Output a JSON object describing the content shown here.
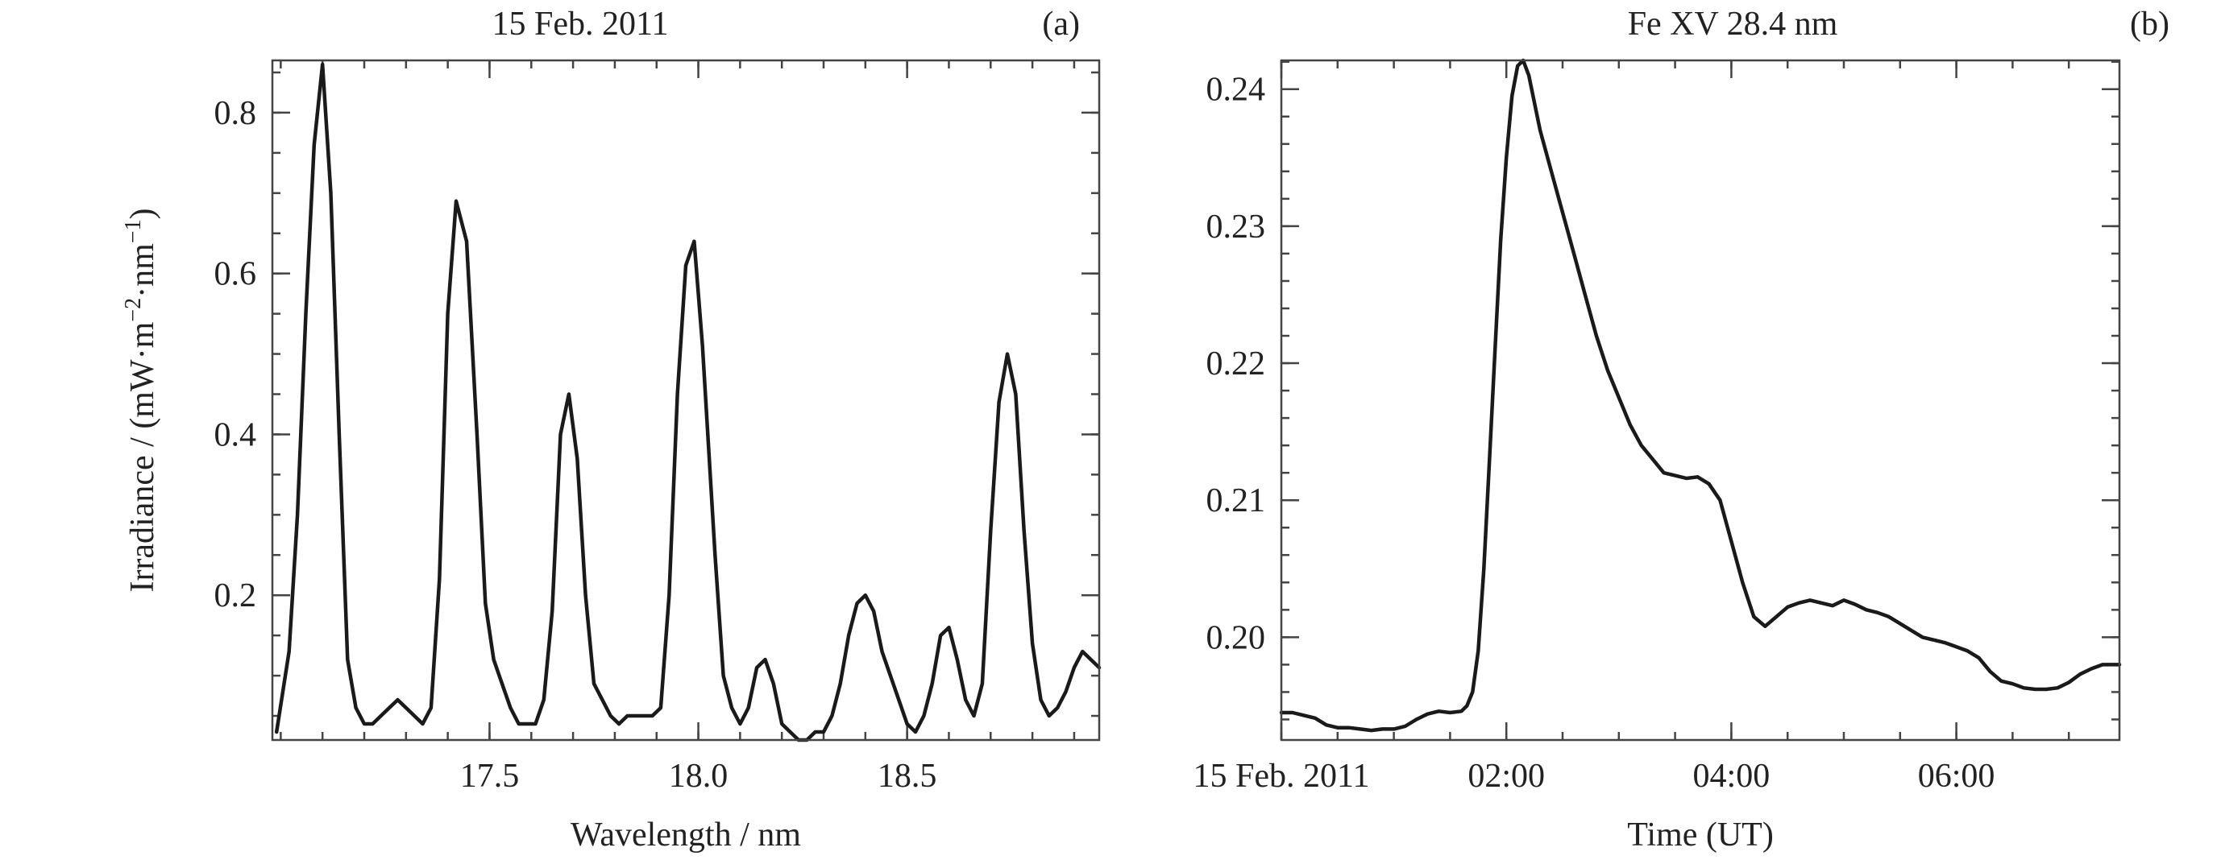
{
  "colors": {
    "line": "#1a1a1a",
    "axis": "#444444",
    "text": "#222222",
    "background": "#ffffff"
  },
  "chart_data": [
    {
      "type": "line",
      "title": "15 Feb. 2011",
      "panel_label": "(a)",
      "xlabel": "Wavelength / nm",
      "ylabel_main": "Irradiance / (mW",
      "ylabel_m": "m",
      "ylabel_m_exp": "−2",
      "ylabel_nm": "nm",
      "ylabel_nm_exp": "−1",
      "ylabel_close": ")",
      "xlim": [
        16.98,
        18.96
      ],
      "ylim": [
        0.02,
        0.865
      ],
      "xticks": [
        17.5,
        18.0,
        18.5
      ],
      "xtick_labels": [
        "17.5",
        "18.0",
        "18.5"
      ],
      "yticks": [
        0.2,
        0.4,
        0.6,
        0.8
      ],
      "ytick_labels": [
        "0.2",
        "0.4",
        "0.6",
        "0.8"
      ],
      "grid": false,
      "series": [
        {
          "x": [
            16.99,
            17.02,
            17.04,
            17.06,
            17.08,
            17.1,
            17.12,
            17.14,
            17.16,
            17.18,
            17.2,
            17.22,
            17.24,
            17.26,
            17.28,
            17.3,
            17.32,
            17.34,
            17.36,
            17.38,
            17.4,
            17.42,
            17.445,
            17.47,
            17.49,
            17.51,
            17.53,
            17.55,
            17.57,
            17.59,
            17.61,
            17.63,
            17.65,
            17.67,
            17.69,
            17.71,
            17.73,
            17.75,
            17.77,
            17.79,
            17.81,
            17.83,
            17.85,
            17.87,
            17.89,
            17.91,
            17.93,
            17.95,
            17.97,
            17.99,
            18.01,
            18.04,
            18.06,
            18.08,
            18.1,
            18.12,
            18.14,
            18.16,
            18.18,
            18.2,
            18.22,
            18.24,
            18.26,
            18.28,
            18.3,
            18.32,
            18.34,
            18.36,
            18.38,
            18.4,
            18.42,
            18.44,
            18.46,
            18.48,
            18.5,
            18.52,
            18.54,
            18.56,
            18.58,
            18.6,
            18.62,
            18.64,
            18.66,
            18.68,
            18.7,
            18.72,
            18.74,
            18.76,
            18.78,
            18.8,
            18.82,
            18.84,
            18.86,
            18.88,
            18.9,
            18.92,
            18.96
          ],
          "y": [
            0.03,
            0.13,
            0.3,
            0.55,
            0.76,
            0.86,
            0.7,
            0.4,
            0.12,
            0.06,
            0.04,
            0.04,
            0.05,
            0.06,
            0.07,
            0.06,
            0.05,
            0.04,
            0.06,
            0.22,
            0.55,
            0.69,
            0.64,
            0.4,
            0.19,
            0.12,
            0.09,
            0.06,
            0.04,
            0.04,
            0.04,
            0.07,
            0.18,
            0.4,
            0.45,
            0.37,
            0.2,
            0.09,
            0.07,
            0.05,
            0.04,
            0.05,
            0.05,
            0.05,
            0.05,
            0.06,
            0.2,
            0.45,
            0.61,
            0.64,
            0.51,
            0.25,
            0.1,
            0.06,
            0.04,
            0.06,
            0.11,
            0.12,
            0.09,
            0.04,
            0.03,
            0.02,
            0.02,
            0.03,
            0.03,
            0.05,
            0.09,
            0.15,
            0.19,
            0.2,
            0.18,
            0.13,
            0.1,
            0.07,
            0.04,
            0.03,
            0.05,
            0.09,
            0.15,
            0.16,
            0.12,
            0.07,
            0.05,
            0.09,
            0.28,
            0.44,
            0.5,
            0.45,
            0.28,
            0.14,
            0.07,
            0.05,
            0.06,
            0.08,
            0.11,
            0.13,
            0.11
          ]
        }
      ]
    },
    {
      "type": "line",
      "title": "Fe XV 28.4 nm",
      "panel_label": "(b)",
      "xlabel": "Time (UT)",
      "xlim": [
        0.0,
        7.45
      ],
      "ylim": [
        0.1925,
        0.2421
      ],
      "xticks": [
        0.0,
        2.0,
        4.0,
        6.0
      ],
      "xtick_labels": [
        "15 Feb. 2011",
        "02:00",
        "04:00",
        "06:00"
      ],
      "yticks": [
        0.2,
        0.21,
        0.22,
        0.23,
        0.24
      ],
      "ytick_labels": [
        "0.20",
        "0.21",
        "0.22",
        "0.23",
        "0.24"
      ],
      "grid": false,
      "series": [
        {
          "x": [
            0.0,
            0.1,
            0.2,
            0.3,
            0.4,
            0.5,
            0.6,
            0.7,
            0.8,
            0.9,
            1.0,
            1.1,
            1.2,
            1.3,
            1.4,
            1.5,
            1.6,
            1.65,
            1.7,
            1.75,
            1.8,
            1.85,
            1.9,
            1.95,
            2.0,
            2.05,
            2.1,
            2.15,
            2.2,
            2.25,
            2.3,
            2.4,
            2.5,
            2.6,
            2.7,
            2.8,
            2.9,
            3.0,
            3.1,
            3.2,
            3.3,
            3.4,
            3.5,
            3.6,
            3.7,
            3.8,
            3.9,
            4.0,
            4.1,
            4.2,
            4.3,
            4.4,
            4.5,
            4.6,
            4.7,
            4.8,
            4.9,
            5.0,
            5.1,
            5.2,
            5.3,
            5.4,
            5.5,
            5.6,
            5.7,
            5.8,
            5.9,
            6.0,
            6.1,
            6.2,
            6.3,
            6.4,
            6.5,
            6.6,
            6.7,
            6.8,
            6.9,
            7.0,
            7.1,
            7.2,
            7.3,
            7.45
          ],
          "y": [
            0.1945,
            0.1945,
            0.1943,
            0.1941,
            0.1936,
            0.1934,
            0.1934,
            0.1933,
            0.1932,
            0.1933,
            0.1933,
            0.1935,
            0.194,
            0.1944,
            0.1946,
            0.1945,
            0.1946,
            0.195,
            0.196,
            0.199,
            0.205,
            0.213,
            0.221,
            0.229,
            0.235,
            0.2395,
            0.2417,
            0.2421,
            0.241,
            0.239,
            0.237,
            0.234,
            0.231,
            0.228,
            0.225,
            0.222,
            0.2195,
            0.2175,
            0.2155,
            0.214,
            0.213,
            0.212,
            0.2118,
            0.2116,
            0.2117,
            0.2112,
            0.21,
            0.207,
            0.204,
            0.2015,
            0.2008,
            0.2015,
            0.2022,
            0.2025,
            0.2027,
            0.2025,
            0.2023,
            0.2027,
            0.2024,
            0.202,
            0.2018,
            0.2015,
            0.201,
            0.2005,
            0.2,
            0.1998,
            0.1996,
            0.1993,
            0.199,
            0.1985,
            0.1975,
            0.1968,
            0.1966,
            0.1963,
            0.1962,
            0.1962,
            0.1963,
            0.1967,
            0.1973,
            0.1977,
            0.198,
            0.198
          ]
        }
      ]
    }
  ]
}
